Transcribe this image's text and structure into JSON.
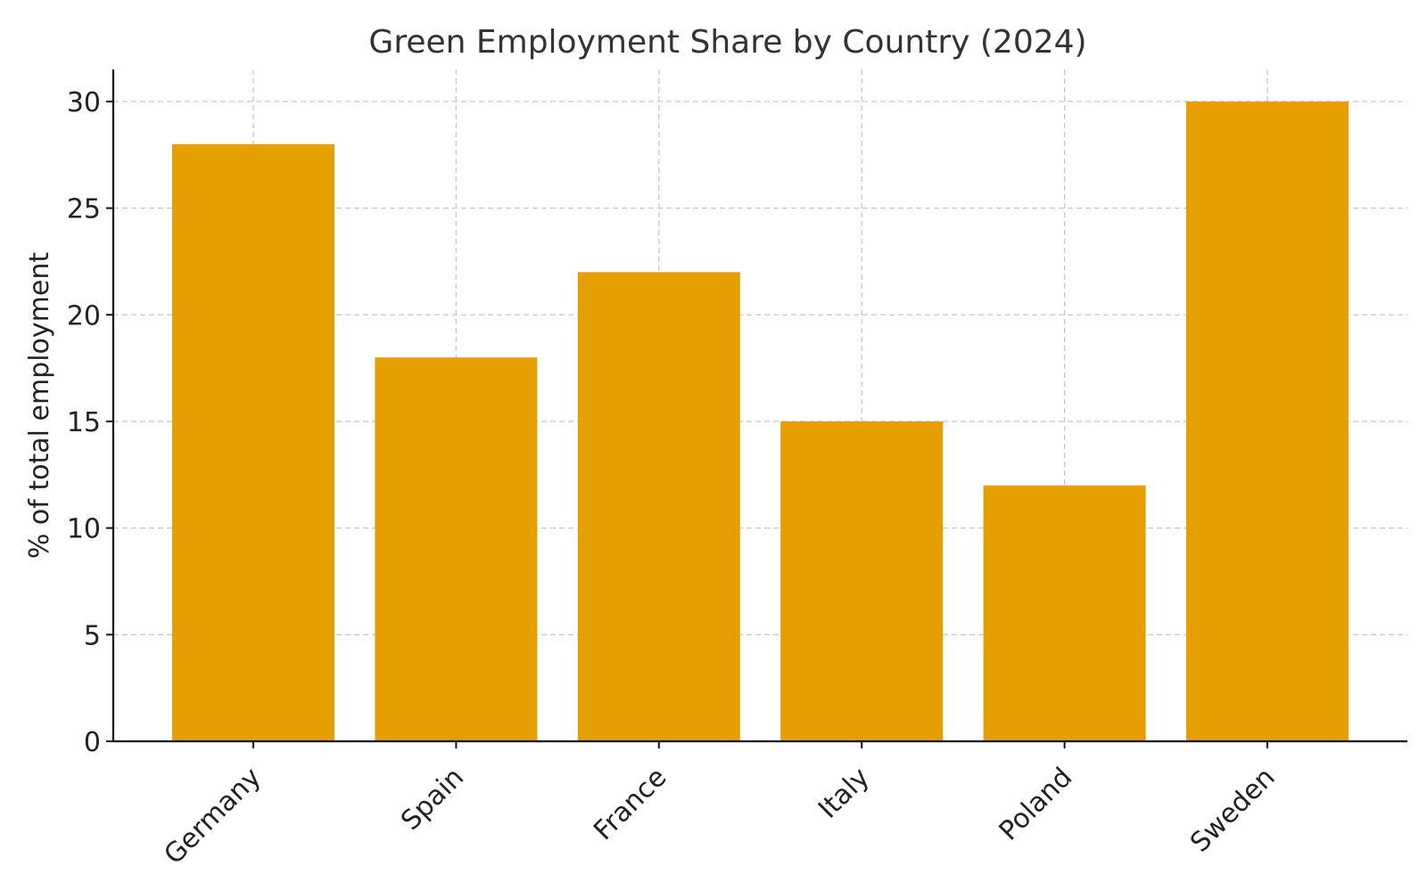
{
  "chart_data": {
    "type": "bar",
    "title": "Green Employment Share by Country (2024)",
    "xlabel": "",
    "ylabel": "% of total employment",
    "categories": [
      "Germany",
      "Spain",
      "France",
      "Italy",
      "Poland",
      "Sweden"
    ],
    "values": [
      28,
      18,
      22,
      15,
      12,
      30
    ],
    "ylim": [
      0,
      31.5
    ],
    "yticks": [
      0,
      5,
      10,
      15,
      20,
      25,
      30
    ],
    "bar_color": "#E69F00",
    "grid": true,
    "legend": "none"
  }
}
